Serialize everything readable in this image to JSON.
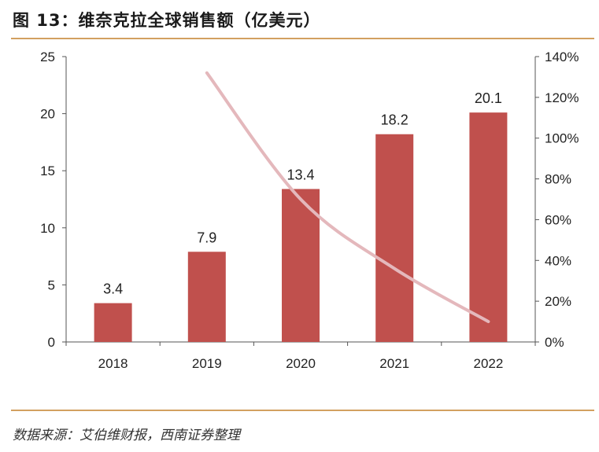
{
  "title": "图 13：维奈克拉全球销售额（亿美元）",
  "source": "数据来源：艾伯维财报，西南证券整理",
  "colors": {
    "bar": "#c0504d",
    "line": "#e4b8bc",
    "rule": "#d2a060",
    "axis": "#555555"
  },
  "chart_data": {
    "type": "bar",
    "categories": [
      "2018",
      "2019",
      "2020",
      "2021",
      "2022"
    ],
    "series": [
      {
        "values": [
          3.4,
          7.9,
          13.4,
          18.2,
          20.1
        ],
        "axis": "left",
        "type": "bar"
      },
      {
        "values": [
          null,
          1.32,
          0.7,
          0.36,
          0.1
        ],
        "axis": "right",
        "type": "line",
        "smooth": true
      }
    ],
    "ylim": [
      0,
      25
    ],
    "yticks": [
      "0",
      "5",
      "10",
      "15",
      "20",
      "25"
    ],
    "y2lim": [
      0,
      1.4
    ],
    "y2ticks": [
      "0%",
      "20%",
      "40%",
      "60%",
      "80%",
      "100%",
      "120%",
      "140%"
    ],
    "data_labels": [
      "3.4",
      "7.9",
      "13.4",
      "18.2",
      "20.1"
    ],
    "grid": false,
    "legend": "none"
  }
}
